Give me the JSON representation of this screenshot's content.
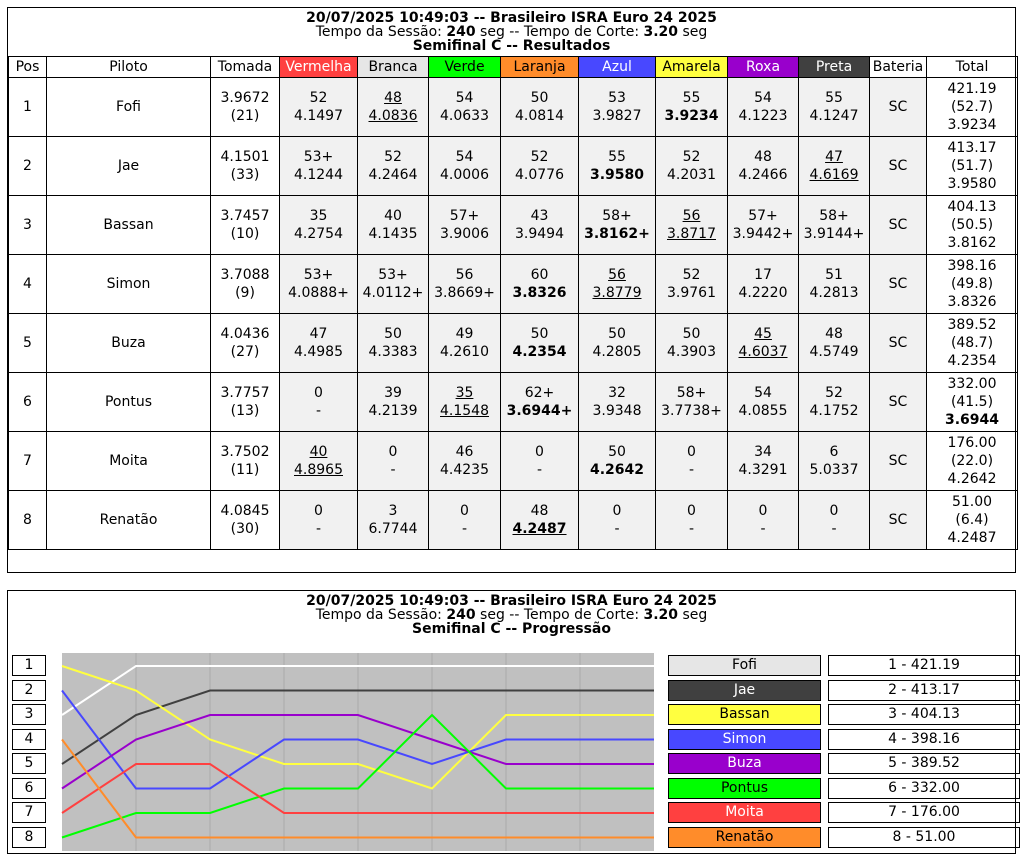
{
  "results": {
    "header_line1": "20/07/2025 10:49:03 -- Brasileiro ISRA Euro 24 2025",
    "session_label": "Tempo da Sessão:",
    "session_value": "240",
    "session_unit": "seg --",
    "cut_label": "Tempo de Corte:",
    "cut_value": "3.20",
    "cut_unit": "seg",
    "subtitle": "Semifinal C -- Resultados",
    "columns": [
      "Pos",
      "Piloto",
      "Tomada",
      "Vermelha",
      "Branca",
      "Verde",
      "Laranja",
      "Azul",
      "Amarela",
      "Roxa",
      "Preta",
      "Bateria",
      "Total"
    ],
    "column_colors": {
      "Vermelha": {
        "bg": "#ff4040",
        "fg": "#ffffff"
      },
      "Branca": {
        "bg": "#e6e6e6",
        "fg": "#000000"
      },
      "Verde": {
        "bg": "#00ff00",
        "fg": "#000000"
      },
      "Laranja": {
        "bg": "#ff8c2a",
        "fg": "#000000"
      },
      "Azul": {
        "bg": "#4848ff",
        "fg": "#ffffff"
      },
      "Amarela": {
        "bg": "#ffff40",
        "fg": "#000000"
      },
      "Roxa": {
        "bg": "#9900cc",
        "fg": "#ffffff"
      },
      "Preta": {
        "bg": "#404040",
        "fg": "#ffffff"
      }
    },
    "rows": [
      {
        "pos": "1",
        "name": "Fofi",
        "tomada": [
          "3.9672",
          "(21)"
        ],
        "lanes": [
          {
            "l": "52",
            "t": "4.1497"
          },
          {
            "l": "48",
            "t": "4.0836",
            "u": true
          },
          {
            "l": "54",
            "t": "4.0633"
          },
          {
            "l": "50",
            "t": "4.0814"
          },
          {
            "l": "53",
            "t": "3.9827"
          },
          {
            "l": "55",
            "t": "3.9234",
            "b": true
          },
          {
            "l": "54",
            "t": "4.1223"
          },
          {
            "l": "55",
            "t": "4.1247"
          }
        ],
        "bateria": "SC",
        "total": [
          "421.19",
          "(52.7)",
          "3.9234"
        ],
        "total_bold": false
      },
      {
        "pos": "2",
        "name": "Jae",
        "tomada": [
          "4.1501",
          "(33)"
        ],
        "lanes": [
          {
            "l": "53+",
            "t": "4.1244"
          },
          {
            "l": "52",
            "t": "4.2464"
          },
          {
            "l": "54",
            "t": "4.0006"
          },
          {
            "l": "52",
            "t": "4.0776"
          },
          {
            "l": "55",
            "t": "3.9580",
            "b": true
          },
          {
            "l": "52",
            "t": "4.2031"
          },
          {
            "l": "48",
            "t": "4.2466"
          },
          {
            "l": "47",
            "t": "4.6169",
            "u": true
          }
        ],
        "bateria": "SC",
        "total": [
          "413.17",
          "(51.7)",
          "3.9580"
        ],
        "total_bold": false
      },
      {
        "pos": "3",
        "name": "Bassan",
        "tomada": [
          "3.7457",
          "(10)"
        ],
        "lanes": [
          {
            "l": "35",
            "t": "4.2754"
          },
          {
            "l": "40",
            "t": "4.1435"
          },
          {
            "l": "57+",
            "t": "3.9006"
          },
          {
            "l": "43",
            "t": "3.9494"
          },
          {
            "l": "58+",
            "t": "3.8162+",
            "b": true
          },
          {
            "l": "56",
            "t": "3.8717",
            "u": true
          },
          {
            "l": "57+",
            "t": "3.9442+"
          },
          {
            "l": "58+",
            "t": "3.9144+"
          }
        ],
        "bateria": "SC",
        "total": [
          "404.13",
          "(50.5)",
          "3.8162"
        ],
        "total_bold": false
      },
      {
        "pos": "4",
        "name": "Simon",
        "tomada": [
          "3.7088",
          "(9)"
        ],
        "lanes": [
          {
            "l": "53+",
            "t": "4.0888+"
          },
          {
            "l": "53+",
            "t": "4.0112+"
          },
          {
            "l": "56",
            "t": "3.8669+"
          },
          {
            "l": "60",
            "t": "3.8326",
            "b": true
          },
          {
            "l": "56",
            "t": "3.8779",
            "u": true
          },
          {
            "l": "52",
            "t": "3.9761"
          },
          {
            "l": "17",
            "t": "4.2220"
          },
          {
            "l": "51",
            "t": "4.2813"
          }
        ],
        "bateria": "SC",
        "total": [
          "398.16",
          "(49.8)",
          "3.8326"
        ],
        "total_bold": false
      },
      {
        "pos": "5",
        "name": "Buza",
        "tomada": [
          "4.0436",
          "(27)"
        ],
        "lanes": [
          {
            "l": "47",
            "t": "4.4985"
          },
          {
            "l": "50",
            "t": "4.3383"
          },
          {
            "l": "49",
            "t": "4.2610"
          },
          {
            "l": "50",
            "t": "4.2354",
            "b": true
          },
          {
            "l": "50",
            "t": "4.2805"
          },
          {
            "l": "50",
            "t": "4.3903"
          },
          {
            "l": "45",
            "t": "4.6037",
            "u": true
          },
          {
            "l": "48",
            "t": "4.5749"
          }
        ],
        "bateria": "SC",
        "total": [
          "389.52",
          "(48.7)",
          "4.2354"
        ],
        "total_bold": false
      },
      {
        "pos": "6",
        "name": "Pontus",
        "tomada": [
          "3.7757",
          "(13)"
        ],
        "lanes": [
          {
            "l": "0",
            "t": "-"
          },
          {
            "l": "39",
            "t": "4.2139"
          },
          {
            "l": "35",
            "t": "4.1548",
            "u": true
          },
          {
            "l": "62+",
            "t": "3.6944+",
            "b": true
          },
          {
            "l": "32",
            "t": "3.9348"
          },
          {
            "l": "58+",
            "t": "3.7738+"
          },
          {
            "l": "54",
            "t": "4.0855"
          },
          {
            "l": "52",
            "t": "4.1752"
          }
        ],
        "bateria": "SC",
        "total": [
          "332.00",
          "(41.5)",
          "3.6944"
        ],
        "total_bold": true
      },
      {
        "pos": "7",
        "name": "Moita",
        "tomada": [
          "3.7502",
          "(11)"
        ],
        "lanes": [
          {
            "l": "40",
            "t": "4.8965",
            "u": true
          },
          {
            "l": "0",
            "t": "-"
          },
          {
            "l": "46",
            "t": "4.4235"
          },
          {
            "l": "0",
            "t": "-"
          },
          {
            "l": "50",
            "t": "4.2642",
            "b": true
          },
          {
            "l": "0",
            "t": "-"
          },
          {
            "l": "34",
            "t": "4.3291"
          },
          {
            "l": "6",
            "t": "5.0337"
          }
        ],
        "bateria": "SC",
        "total": [
          "176.00",
          "(22.0)",
          "4.2642"
        ],
        "total_bold": false
      },
      {
        "pos": "8",
        "name": "Renatão",
        "tomada": [
          "4.0845",
          "(30)"
        ],
        "lanes": [
          {
            "l": "0",
            "t": "-"
          },
          {
            "l": "3",
            "t": "6.7744"
          },
          {
            "l": "0",
            "t": "-"
          },
          {
            "l": "48",
            "t": "4.2487",
            "b": true,
            "u": true
          },
          {
            "l": "0",
            "t": "-"
          },
          {
            "l": "0",
            "t": "-"
          },
          {
            "l": "0",
            "t": "-"
          },
          {
            "l": "0",
            "t": "-"
          }
        ],
        "bateria": "SC",
        "total": [
          "51.00",
          "(6.4)",
          "4.2487"
        ],
        "total_bold": false
      }
    ]
  },
  "progression": {
    "header_line1": "20/07/2025 10:49:03 -- Brasileiro ISRA Euro 24 2025",
    "subtitle": "Semifinal C -- Progressão",
    "positions": [
      "1",
      "2",
      "3",
      "4",
      "5",
      "6",
      "7",
      "8"
    ],
    "legend": [
      {
        "name": "Fofi",
        "bg": "#e6e6e6",
        "fg": "#000000",
        "line": "#ffffff",
        "score": "1 - 421.19"
      },
      {
        "name": "Jae",
        "bg": "#404040",
        "fg": "#ffffff",
        "line": "#404040",
        "score": "2 - 413.17"
      },
      {
        "name": "Bassan",
        "bg": "#ffff40",
        "fg": "#000000",
        "line": "#ffff40",
        "score": "3 - 404.13"
      },
      {
        "name": "Simon",
        "bg": "#4848ff",
        "fg": "#ffffff",
        "line": "#4848ff",
        "score": "4 - 398.16"
      },
      {
        "name": "Buza",
        "bg": "#9900cc",
        "fg": "#ffffff",
        "line": "#9900cc",
        "score": "5 - 389.52"
      },
      {
        "name": "Pontus",
        "bg": "#00ff00",
        "fg": "#000000",
        "line": "#00ff00",
        "score": "6 - 332.00"
      },
      {
        "name": "Moita",
        "bg": "#ff4040",
        "fg": "#ffffff",
        "line": "#ff4040",
        "score": "7 - 176.00"
      },
      {
        "name": "Renatão",
        "bg": "#ff8c2a",
        "fg": "#000000",
        "line": "#ff8c2a",
        "score": "8 - 51.00"
      }
    ],
    "chart_data": {
      "type": "line",
      "x": [
        0,
        1,
        2,
        3,
        4,
        5,
        6,
        7,
        8
      ],
      "ylim": [
        1,
        8
      ],
      "series": [
        {
          "name": "Fofi",
          "values": [
            3,
            1,
            1,
            1,
            1,
            1,
            1,
            1,
            1
          ]
        },
        {
          "name": "Jae",
          "values": [
            5,
            3,
            2,
            2,
            2,
            2,
            2,
            2,
            2
          ]
        },
        {
          "name": "Bassan",
          "values": [
            1,
            2,
            4,
            5,
            5,
            6,
            3,
            3,
            3
          ]
        },
        {
          "name": "Simon",
          "values": [
            2,
            6,
            6,
            4,
            4,
            5,
            4,
            4,
            4
          ]
        },
        {
          "name": "Buza",
          "values": [
            6,
            4,
            3,
            3,
            3,
            4,
            5,
            5,
            5
          ]
        },
        {
          "name": "Pontus",
          "values": [
            8,
            7,
            7,
            6,
            6,
            3,
            6,
            6,
            6
          ]
        },
        {
          "name": "Moita",
          "values": [
            7,
            5,
            5,
            7,
            7,
            7,
            7,
            7,
            7
          ]
        },
        {
          "name": "Renatão",
          "values": [
            4,
            8,
            8,
            8,
            8,
            8,
            8,
            8,
            8
          ]
        }
      ]
    }
  }
}
